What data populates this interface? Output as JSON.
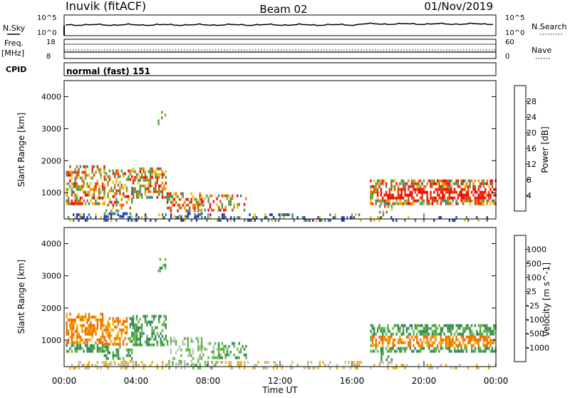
{
  "header": {
    "title": "Inuvik (fitACF)",
    "beam": "Beam 02",
    "date": "01/Nov/2019"
  },
  "top_panel": {
    "left_label": "N.Sky",
    "right_label": "N.Search",
    "left_ticks": [
      "10^5",
      "10^0"
    ],
    "right_ticks": [
      "10^5",
      "10^0"
    ]
  },
  "freq_panel": {
    "left_label_1": "Freq.",
    "left_label_2": "[MHz]",
    "left_ticks": [
      "18",
      "8"
    ],
    "right_label": "Nave",
    "right_ticks": [
      "60",
      "0"
    ]
  },
  "cpid": {
    "label": "CPID",
    "value": "normal (fast) 151"
  },
  "chart_data": [
    {
      "type": "heatmap",
      "xlabel": "",
      "ylabel": "Slant Range [km]",
      "yticks": [
        "1000",
        "2000",
        "3000",
        "4000"
      ],
      "xticks": [
        "00:00",
        "04:00",
        "08:00",
        "12:00",
        "16:00",
        "20:00",
        "00:00"
      ],
      "ylim": [
        180,
        4500
      ],
      "colorbar_label": "Power [dB]",
      "colorbar_ticks": [
        "4",
        "8",
        "12",
        "16",
        "20",
        "24",
        "28"
      ],
      "colorbar_colors": [
        "#0000ff",
        "#2840b8",
        "#4a8a78",
        "#4aa040",
        "#f0c000",
        "#f08000",
        "#e04000",
        "#ff0000"
      ]
    },
    {
      "type": "heatmap",
      "xlabel": "Time UT",
      "ylabel": "Slant Range [km]",
      "yticks": [
        "1000",
        "2000",
        "3000",
        "4000"
      ],
      "xticks": [
        "00:00",
        "04:00",
        "08:00",
        "12:00",
        "16:00",
        "20:00",
        "00:00"
      ],
      "ylim": [
        180,
        4500
      ],
      "colorbar_label": "Velocity [m s^-1]",
      "colorbar_ticks": [
        "1000",
        "500",
        "100",
        "25",
        "-25",
        "-100",
        "-500",
        "-1000"
      ],
      "colorbar_colors": [
        "#1030c0",
        "#2a60a8",
        "#3a8a5a",
        "#60b840",
        "#c0c0c0",
        "#f0b000",
        "#f07000",
        "#f03000",
        "#ff0000"
      ]
    }
  ]
}
